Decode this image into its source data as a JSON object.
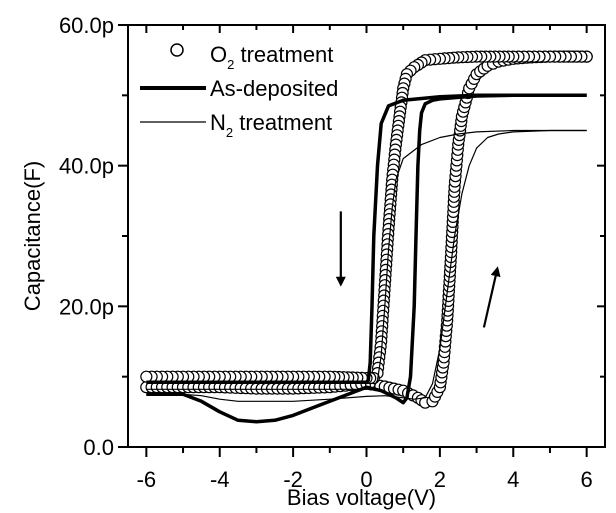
{
  "chart_data": {
    "type": "line",
    "xlabel": "Bias voltage(V)",
    "ylabel": "Capacitance(F)",
    "xlim": [
      -6.5,
      6.5
    ],
    "ylim": [
      0,
      60
    ],
    "x_ticks": [
      -6,
      -4,
      -2,
      0,
      2,
      4,
      6
    ],
    "x_tick_labels": [
      "-6",
      "-4",
      "-2",
      "0",
      "2",
      "4",
      "6"
    ],
    "y_ticks": [
      0,
      20,
      40,
      60
    ],
    "y_tick_labels": [
      "0.0",
      "20.0p",
      "40.0p",
      "60.0p"
    ],
    "legend_position": "top-left",
    "legend": [
      {
        "text": "O",
        "sub": "2",
        "after": " treatment",
        "style": "circle"
      },
      {
        "text": "As-deposited",
        "sub": "",
        "after": "",
        "style": "thick"
      },
      {
        "text": "N",
        "sub": "2",
        "after": " treatment",
        "style": "thin"
      }
    ],
    "series": [
      {
        "label": "O2 treatment sweep up",
        "style": "circle",
        "x": [
          -6,
          -5,
          -4,
          -3,
          -2,
          -1,
          0,
          0.5,
          1.0,
          1.4,
          1.6,
          1.8,
          2.0,
          2.1,
          2.2,
          2.3,
          2.4,
          2.5,
          2.6,
          2.8,
          3.0,
          3.3,
          3.6,
          4,
          4.5,
          5,
          5.5,
          6
        ],
        "y": [
          8.5,
          8.5,
          8.5,
          8.3,
          8.3,
          8.5,
          9.0,
          8.6,
          8.0,
          7.0,
          6.3,
          6.5,
          8.5,
          12,
          18,
          27,
          37,
          43,
          47,
          51,
          53,
          54.2,
          54.8,
          55.2,
          55.4,
          55.5,
          55.5,
          55.5
        ]
      },
      {
        "label": "O2 treatment sweep down",
        "style": "circle",
        "x": [
          6,
          5,
          4,
          3.5,
          3,
          2.5,
          2,
          1.6,
          1.3,
          1.1,
          1.0,
          0.9,
          0.8,
          0.7,
          0.6,
          0.5,
          0.4,
          0.3,
          0.2,
          0.1,
          0,
          -0.5,
          -1,
          -2,
          -3,
          -4,
          -5,
          -6
        ],
        "y": [
          55.5,
          55.5,
          55.5,
          55.5,
          55.5,
          55.4,
          55.2,
          55,
          54,
          53,
          51,
          47,
          43,
          38,
          31,
          23,
          15,
          10.5,
          9.8,
          9.8,
          9.8,
          9.9,
          10,
          10,
          10,
          10,
          10,
          10
        ]
      },
      {
        "label": "As-deposited sweep down",
        "style": "thick",
        "x": [
          6,
          4,
          3,
          2,
          1,
          0.6,
          0.4,
          0.3,
          0.2,
          0.15,
          0.1,
          0.05,
          0,
          -0.5,
          -1,
          -2,
          -3,
          -4,
          -5,
          -6
        ],
        "y": [
          50,
          50,
          50,
          49.8,
          49.3,
          48.5,
          46,
          40,
          30,
          20,
          12,
          9.5,
          9.2,
          9.2,
          9.2,
          9.2,
          9.2,
          9.2,
          9.2,
          9.2
        ]
      },
      {
        "label": "As-deposited sweep up",
        "style": "thick",
        "x": [
          -6,
          -5,
          -4.5,
          -4,
          -3.5,
          -3,
          -2.5,
          -2,
          -1.5,
          -1,
          -0.5,
          0,
          0.4,
          0.8,
          1.0,
          1.1,
          1.2,
          1.3,
          1.35,
          1.4,
          1.45,
          1.5,
          1.6,
          1.8,
          2.0,
          2.5,
          3,
          4,
          5,
          6
        ],
        "y": [
          7.5,
          7.5,
          6.5,
          5,
          3.8,
          3.6,
          3.8,
          4.5,
          5.5,
          6.5,
          7.5,
          8.5,
          8.0,
          7.0,
          6.3,
          7,
          10,
          20,
          30,
          40,
          45,
          47.5,
          48.8,
          49.3,
          49.5,
          49.7,
          49.9,
          50,
          50,
          50
        ]
      },
      {
        "label": "N2 treatment sweep down",
        "style": "thin",
        "x": [
          6,
          4,
          3,
          2.5,
          2,
          1.5,
          1.0,
          0.8,
          0.7,
          0.6,
          0.5,
          0.4,
          0.3,
          0.2,
          0.1,
          0,
          -0.5,
          -1,
          -2,
          -3,
          -4,
          -5,
          -6
        ],
        "y": [
          45,
          45,
          44.8,
          44.5,
          44,
          43,
          41,
          38,
          34,
          28,
          20,
          13,
          9.5,
          8.5,
          8.2,
          8.2,
          8.2,
          8.2,
          8.2,
          8.2,
          8.2,
          8.2,
          8.2
        ]
      },
      {
        "label": "N2 treatment sweep up",
        "style": "thin",
        "x": [
          -6,
          -5,
          -4.5,
          -4,
          -3.5,
          -3,
          -2,
          -1,
          0,
          0.5,
          1.0,
          1.3,
          1.6,
          1.8,
          2.0,
          2.2,
          2.4,
          2.6,
          2.8,
          3.0,
          3.3,
          3.6,
          4,
          5,
          6
        ],
        "y": [
          7.5,
          7.5,
          7.3,
          6.8,
          6.5,
          6.5,
          6.5,
          6.8,
          7.2,
          7.3,
          7.0,
          6.8,
          7.0,
          9,
          14,
          22,
          30,
          36,
          40,
          42.5,
          44,
          44.5,
          44.8,
          45,
          45
        ]
      }
    ],
    "annotations": [
      {
        "type": "arrow",
        "label": "down-arrow",
        "from": [
          -0.7,
          33.5
        ],
        "to": [
          -0.7,
          23.5
        ]
      },
      {
        "type": "arrow",
        "label": "up-arrow",
        "from": [
          3.2,
          17
        ],
        "to": [
          3.55,
          25
        ]
      }
    ]
  }
}
